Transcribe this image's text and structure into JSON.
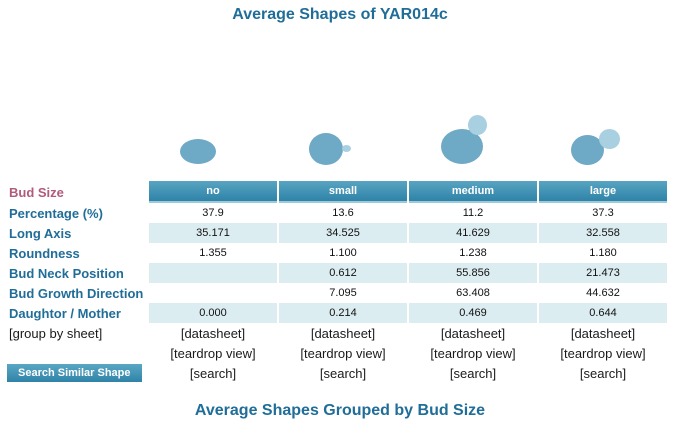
{
  "title": "Average Shapes of YAR014c",
  "footer_title": "Average Shapes Grouped by Bud Size",
  "colors": {
    "accent": "#1f6d98",
    "header_bg": "#3f93b6",
    "row_shade": "#dcedf2",
    "bud_label": "#b05a7c"
  },
  "columns": [
    "no",
    "small",
    "medium",
    "large"
  ],
  "rows": [
    {
      "label": "Bud Size",
      "values": [
        "no",
        "small",
        "medium",
        "large"
      ]
    },
    {
      "label": "Percentage (%)",
      "values": [
        "37.9",
        "13.6",
        "11.2",
        "37.3"
      ]
    },
    {
      "label": "Long Axis",
      "values": [
        "35.171",
        "34.525",
        "41.629",
        "32.558"
      ]
    },
    {
      "label": "Roundness",
      "values": [
        "1.355",
        "1.100",
        "1.238",
        "1.180"
      ]
    },
    {
      "label": "Bud Neck Position",
      "values": [
        "",
        "0.612",
        "55.856",
        "21.473"
      ]
    },
    {
      "label": "Bud Growth Direction",
      "values": [
        "",
        "7.095",
        "63.408",
        "44.632"
      ]
    },
    {
      "label": "Daughtor / Mother",
      "values": [
        "0.000",
        "0.214",
        "0.469",
        "0.644"
      ]
    }
  ],
  "group_by_sheet": "[group by sheet]",
  "datasheet_link": "[datasheet]",
  "teardrop_link": "[teardrop view]",
  "search_link": "[search]",
  "search_button": "Search Similar Shape"
}
